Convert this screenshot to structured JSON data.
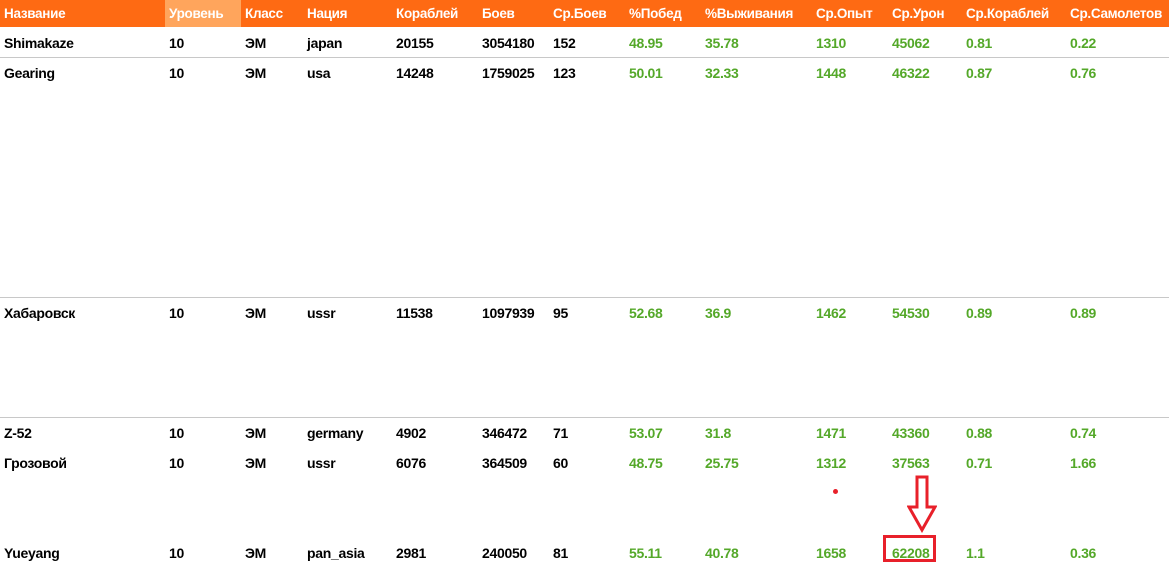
{
  "table": {
    "headers": [
      "Название",
      "Уровень",
      "Класс",
      "Нация",
      "Кораблей",
      "Боев",
      "Ср.Боев",
      "%Побед",
      "%Выживания",
      "Ср.Опыт",
      "Ср.Урон",
      "Ср.Кораблей",
      "Ср.Самолетов"
    ],
    "rows": [
      [
        "Shimakaze",
        "10",
        "ЭМ",
        "japan",
        "20155",
        "3054180",
        "152",
        "48.95",
        "35.78",
        "1310",
        "45062",
        "0.81",
        "0.22"
      ],
      [
        "Gearing",
        "10",
        "ЭМ",
        "usa",
        "14248",
        "1759025",
        "123",
        "50.01",
        "32.33",
        "1448",
        "46322",
        "0.87",
        "0.76"
      ],
      [
        "Хабаровск",
        "10",
        "ЭМ",
        "ussr",
        "11538",
        "1097939",
        "95",
        "52.68",
        "36.9",
        "1462",
        "54530",
        "0.89",
        "0.89"
      ],
      [
        "Z-52",
        "10",
        "ЭМ",
        "germany",
        "4902",
        "346472",
        "71",
        "53.07",
        "31.8",
        "1471",
        "43360",
        "0.88",
        "0.74"
      ],
      [
        "Грозовой",
        "10",
        "ЭМ",
        "ussr",
        "6076",
        "364509",
        "60",
        "48.75",
        "25.75",
        "1312",
        "37563",
        "0.71",
        "1.66"
      ],
      [
        "Yueyang",
        "10",
        "ЭМ",
        "pan_asia",
        "2981",
        "240050",
        "81",
        "55.11",
        "40.78",
        "1658",
        "62208",
        "1.1",
        "0.36"
      ]
    ]
  },
  "colors": {
    "header_bg": "#fe6a13",
    "header_alt_bg": "#ffa55c",
    "stat_green": "#54a829",
    "annotation_red": "#e8202a"
  },
  "annotation": {
    "arrow_icon": "down-arrow-icon",
    "highlighted_value": "62208"
  }
}
